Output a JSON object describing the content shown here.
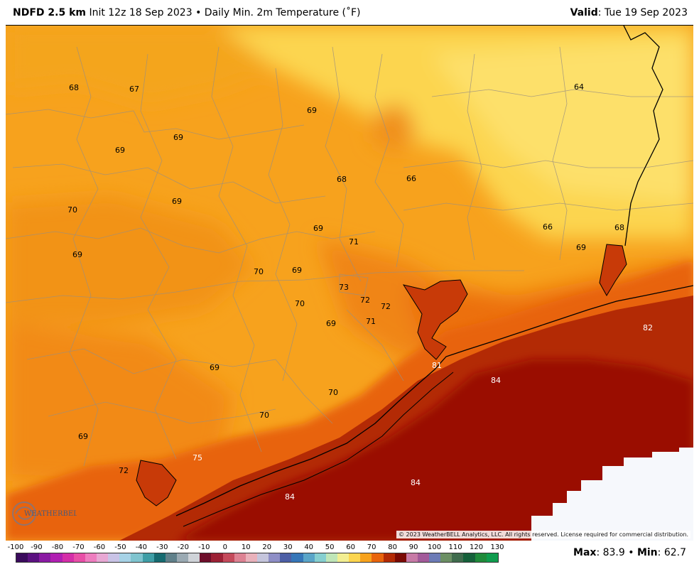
{
  "header": {
    "product": "NDFD 2.5 km",
    "init": "Init 12z 18 Sep 2023",
    "separator": "•",
    "field": "Daily Min. 2m Temperature (˚F)",
    "valid_label": "Valid",
    "valid_date": ": Tue 19 Sep 2023"
  },
  "map": {
    "labels": [
      {
        "text": "68"
      },
      {
        "text": "67"
      },
      {
        "text": "69"
      },
      {
        "text": "69"
      },
      {
        "text": "69"
      },
      {
        "text": "66"
      },
      {
        "text": "64"
      },
      {
        "text": "68"
      },
      {
        "text": "70"
      },
      {
        "text": "69"
      },
      {
        "text": "69"
      },
      {
        "text": "71"
      },
      {
        "text": "66"
      },
      {
        "text": "68"
      },
      {
        "text": "69"
      },
      {
        "text": "69"
      },
      {
        "text": "70"
      },
      {
        "text": "69"
      },
      {
        "text": "73"
      },
      {
        "text": "72"
      },
      {
        "text": "72"
      },
      {
        "text": "70"
      },
      {
        "text": "69"
      },
      {
        "text": "71"
      },
      {
        "text": "82"
      },
      {
        "text": "69"
      },
      {
        "text": "81"
      },
      {
        "text": "84"
      },
      {
        "text": "70"
      },
      {
        "text": "70"
      },
      {
        "text": "69"
      },
      {
        "text": "75"
      },
      {
        "text": "72"
      },
      {
        "text": "84"
      },
      {
        "text": "84"
      }
    ],
    "colors": {
      "cool_yellow": "#fcd54f",
      "land_orange": "#f7a21d",
      "warm_orange": "#f28a14",
      "hot_orange": "#e8640c",
      "gulf_red": "#b32a05",
      "gulf_darkred": "#9a0b00",
      "no_data": "#f6f8fc"
    }
  },
  "copyright": "© 2023 WeatherBELL Analytics, LLC. All rights reserved. License required for commercial distribution.",
  "logo_text": "WEATHERBELL",
  "colorbar": {
    "ticks": [
      "-100",
      "-90",
      "-80",
      "-70",
      "-60",
      "-50",
      "-40",
      "-30",
      "-20",
      "-10",
      "0",
      "10",
      "20",
      "30",
      "40",
      "50",
      "60",
      "70",
      "80",
      "90",
      "100",
      "110",
      "120",
      "130"
    ],
    "colors": [
      "#3a0b5c",
      "#5b1180",
      "#8a1aa3",
      "#b01fb2",
      "#d42ea8",
      "#e84fa7",
      "#ee7dbf",
      "#e8a8d4",
      "#c9c3e6",
      "#a6d2e6",
      "#7fc4cf",
      "#3f9ea6",
      "#166a70",
      "#60808a",
      "#9aa9b2",
      "#cfd3d8",
      "#6d0e2a",
      "#9c2135",
      "#c44a5b",
      "#dd8293",
      "#e9b1bb",
      "#c5c5dc",
      "#8e8ec6",
      "#4c5ea5",
      "#3676b8",
      "#5aa5c8",
      "#86cfd0",
      "#bfe6b8",
      "#f2ee92",
      "#fcd54f",
      "#f7a21d",
      "#e8640c",
      "#b32a05",
      "#7a0a05",
      "#c77aa6",
      "#a25a9a",
      "#6c7bb6",
      "#6b8f64",
      "#3f6b4d",
      "#15603a",
      "#1f8a3a",
      "#0f9c4e"
    ]
  },
  "stats": {
    "max_label": "Max",
    "max_value": ": 83.9",
    "separator": "•",
    "min_label": "Min",
    "min_value": ": 62.7"
  }
}
